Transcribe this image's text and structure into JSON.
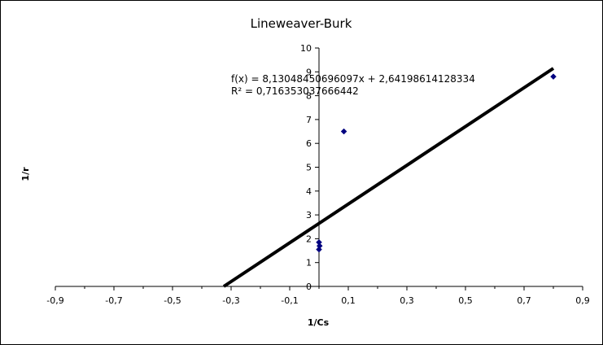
{
  "chart_data": {
    "type": "scatter",
    "title": "Lineweaver-Burk",
    "xlabel": "1/Cs",
    "ylabel": "1/r",
    "xlim": [
      -0.9,
      0.9
    ],
    "ylim": [
      0,
      10
    ],
    "x_ticks": [
      "-0,9",
      "-0,7",
      "-0,5",
      "-0,3",
      "-0,1",
      "0,1",
      "0,3",
      "0,5",
      "0,7",
      "0,9"
    ],
    "x_tick_values": [
      -0.9,
      -0.7,
      -0.5,
      -0.3,
      -0.1,
      0.1,
      0.3,
      0.5,
      0.7,
      0.9
    ],
    "y_ticks": [
      "0",
      "1",
      "2",
      "3",
      "4",
      "5",
      "6",
      "7",
      "8",
      "9",
      "10"
    ],
    "y_tick_values": [
      0,
      1,
      2,
      3,
      4,
      5,
      6,
      7,
      8,
      9,
      10
    ],
    "grid": false,
    "legend": "none",
    "series": [
      {
        "points": [
          {
            "x": 0.0,
            "y": 1.85
          },
          {
            "x": 0.002,
            "y": 1.7
          },
          {
            "x": 0.0,
            "y": 1.55
          },
          {
            "x": 0.085,
            "y": 6.5
          },
          {
            "x": 0.8,
            "y": 8.8
          }
        ],
        "color": "#000080",
        "marker": "diamond"
      }
    ],
    "trendline": {
      "slope": 8.13048450696097,
      "intercept": 2.64198614128334,
      "x_range": [
        -0.325,
        0.8
      ],
      "color": "#000000",
      "equation_label": "f(x) = 8,13048450696097x + 2,64198614128334",
      "r2_label": "R² = 0,716353037666442"
    }
  }
}
